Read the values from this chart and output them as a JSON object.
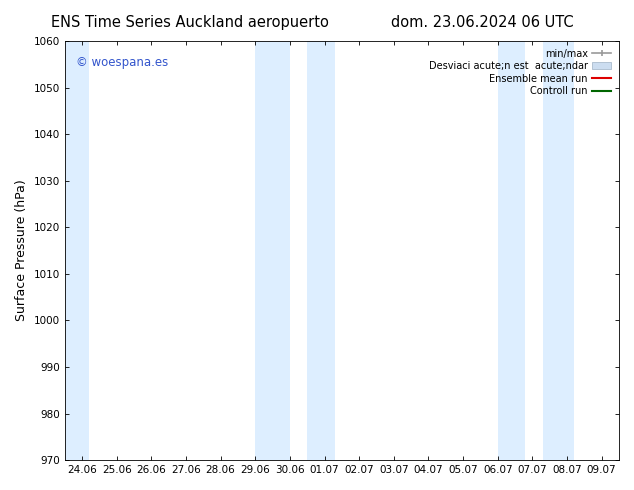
{
  "title_left": "ENS Time Series Auckland aeropuerto",
  "title_right": "dom. 23.06.2024 06 UTC",
  "ylabel": "Surface Pressure (hPa)",
  "ylim": [
    970,
    1060
  ],
  "yticks": [
    970,
    980,
    990,
    1000,
    1010,
    1020,
    1030,
    1040,
    1050,
    1060
  ],
  "xtick_labels": [
    "24.06",
    "25.06",
    "26.06",
    "27.06",
    "28.06",
    "29.06",
    "30.06",
    "01.07",
    "02.07",
    "03.07",
    "04.07",
    "05.07",
    "06.07",
    "07.07",
    "08.07",
    "09.07"
  ],
  "watermark": "© woespana.es",
  "watermark_color": "#3355cc",
  "bg_color": "#ffffff",
  "plot_bg_color": "#ffffff",
  "band_color": "#ddeeff",
  "legend_labels": [
    "min/max",
    "Desviaci acute;n est  acute;ndar",
    "Ensemble mean run",
    "Controll run"
  ],
  "legend_colors_line": [
    "#aaaaaa",
    "#ccddee",
    "#ff2200",
    "#006600"
  ],
  "title_fontsize": 10.5,
  "tick_fontsize": 7.5,
  "ylabel_fontsize": 9,
  "band_ranges": [
    [
      0.0,
      1.2
    ],
    [
      6.0,
      7.0
    ],
    [
      7.5,
      8.3
    ],
    [
      13.0,
      13.8
    ],
    [
      14.3,
      15.2
    ]
  ]
}
